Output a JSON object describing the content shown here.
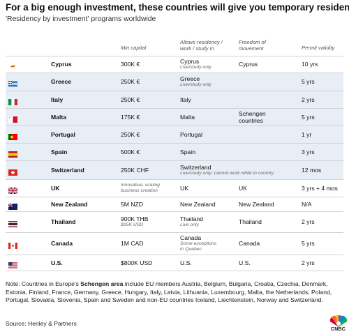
{
  "title": "For a big enough investment, these countries will give you temporary residency",
  "subtitle": "'Residency by investment' programs worldwide",
  "headers": {
    "min_capital": "Min capital",
    "allows": "Allows residency /\nwork / study in",
    "freedom": "Freedom of\nmovement",
    "permit": "Permit validity"
  },
  "rows": [
    {
      "country": "Cyprus",
      "flag": "cyprus-flag-icon",
      "capital": "300K €",
      "capital_note": "",
      "allows": "Cyprus",
      "allows_note": "Live/study only",
      "freedom": "Cyprus",
      "permit": "10 yrs"
    },
    {
      "country": "Greece",
      "flag": "greece-flag-icon",
      "capital": "250K €",
      "capital_note": "",
      "allows": "Greece",
      "allows_note": "Live/study only",
      "freedom": "",
      "permit": "5 yrs"
    },
    {
      "country": "Italy",
      "flag": "italy-flag-icon",
      "capital": "250K €",
      "capital_note": "",
      "allows": "Italy",
      "allows_note": "",
      "freedom": "",
      "permit": "2 yrs"
    },
    {
      "country": "Malta",
      "flag": "malta-flag-icon",
      "capital": "175K €",
      "capital_note": "",
      "allows": "Malta",
      "allows_note": "",
      "freedom": "Schengen\ncountries",
      "permit": "5 yrs"
    },
    {
      "country": "Portugal",
      "flag": "portugal-flag-icon",
      "capital": "250K €",
      "capital_note": "",
      "allows": "Portugal",
      "allows_note": "",
      "freedom": "",
      "permit": "1 yr"
    },
    {
      "country": "Spain",
      "flag": "spain-flag-icon",
      "capital": "500K €",
      "capital_note": "",
      "allows": "Spain",
      "allows_note": "",
      "freedom": "",
      "permit": "3 yrs"
    },
    {
      "country": "Switzerland",
      "flag": "switzerland-flag-icon",
      "capital": "250K CHF",
      "capital_note": "",
      "allows": "Switzerland",
      "allows_note": "Live/study only; cannot work while in country",
      "freedom": "",
      "permit": "12 mos"
    },
    {
      "country": "UK",
      "flag": "uk-flag-icon",
      "capital": "",
      "capital_note": "Innovative, scaling\nbusiness creation",
      "allows": "UK",
      "allows_note": "",
      "freedom": "UK",
      "permit": "3 yrs + 4 mos"
    },
    {
      "country": "New Zealand",
      "flag": "new-zealand-flag-icon",
      "capital": "5M NZD",
      "capital_note": "",
      "allows": "New Zealand",
      "allows_note": "",
      "freedom": "New Zealand",
      "permit": "N/A"
    },
    {
      "country": "Thailand",
      "flag": "thailand-flag-icon",
      "capital": "900K THB",
      "capital_note": "$25K USD",
      "allows": "Thailand",
      "allows_note": "Live only",
      "freedom": "Thailand",
      "permit": "2 yrs"
    },
    {
      "country": "Canada",
      "flag": "canada-flag-icon",
      "capital": "1M CAD",
      "capital_note": "",
      "allows": "Canada",
      "allows_note": "Some exceptions\nin Quebec",
      "freedom": "Canada",
      "permit": "5 yrs"
    },
    {
      "country": "U.S.",
      "flag": "us-flag-icon",
      "capital": "$800K USD",
      "capital_note": "",
      "allows": "U.S.",
      "allows_note": "",
      "freedom": "U.S.",
      "permit": "2 yrs"
    }
  ],
  "note": {
    "prefix": "Note: Countries in Europe's ",
    "bold": "Schengen area",
    "suffix": " include EU members Austria, Belgium, Bulgaria, Croatia, Czechia, Denmark, Estonia, Finland, France, Germany, Greece, Hungary, Italy, Latvia, Lithuania, Luxembourg, Malta, the Netherlands, Poland, Portugal, Slovakia, Slovenia, Spain and Sweden and non-EU countries Iceland, Liechtenstein, Norway and Switzerland."
  },
  "source": "Source: Henley & Partners",
  "logo": {
    "text": "CNBC",
    "icon": "cnbc-peacock-icon"
  },
  "colors": {
    "shaded_row": "#e8eef6",
    "divider": "#d2d2d2"
  }
}
